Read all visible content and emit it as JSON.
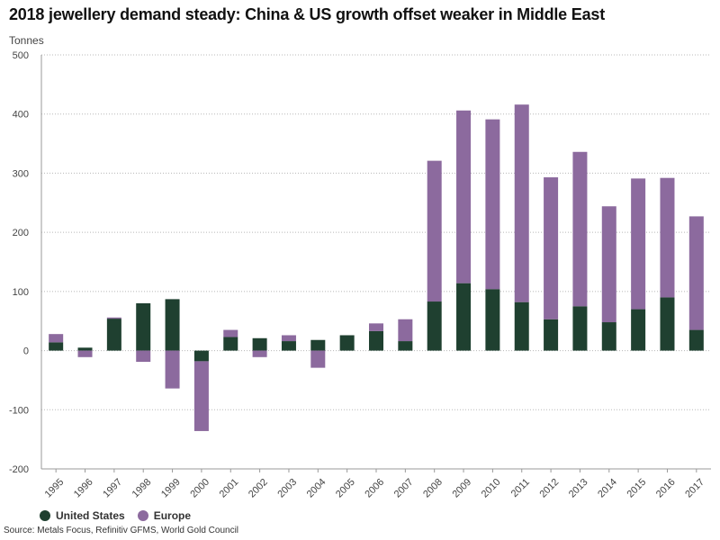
{
  "chart_data": {
    "type": "bar",
    "stacked": true,
    "title": "2018 jewellery demand steady: China & US growth offset weaker in Middle East",
    "ylabel": "Tonnes",
    "xlabel": "",
    "ylim": [
      -200,
      500
    ],
    "yticks": [
      -200,
      -100,
      0,
      100,
      200,
      300,
      400,
      500
    ],
    "grid": true,
    "legend_position": "bottom-left",
    "categories": [
      "1995",
      "1996",
      "1997",
      "1998",
      "1999",
      "2000",
      "2001",
      "2002",
      "2003",
      "2004",
      "2005",
      "2006",
      "2007",
      "2008",
      "2009",
      "2010",
      "2011",
      "2012",
      "2013",
      "2014",
      "2015",
      "2016",
      "2017"
    ],
    "series": [
      {
        "name": "United States",
        "color": "#1f4030",
        "values": [
          14,
          5,
          54,
          80,
          87,
          -18,
          23,
          21,
          16,
          18,
          26,
          33,
          16,
          83,
          114,
          104,
          82,
          53,
          75,
          48,
          70,
          90,
          35
        ]
      },
      {
        "name": "Europe",
        "color": "#8c6a9e",
        "values": [
          14,
          -11,
          2,
          -19,
          -64,
          -118,
          12,
          -11,
          10,
          -29,
          0,
          13,
          37,
          238,
          292,
          287,
          334,
          240,
          261,
          196,
          221,
          202,
          192
        ]
      }
    ]
  },
  "source": "Source: Metals Focus, Refinitiv GFMS, World Gold Council"
}
